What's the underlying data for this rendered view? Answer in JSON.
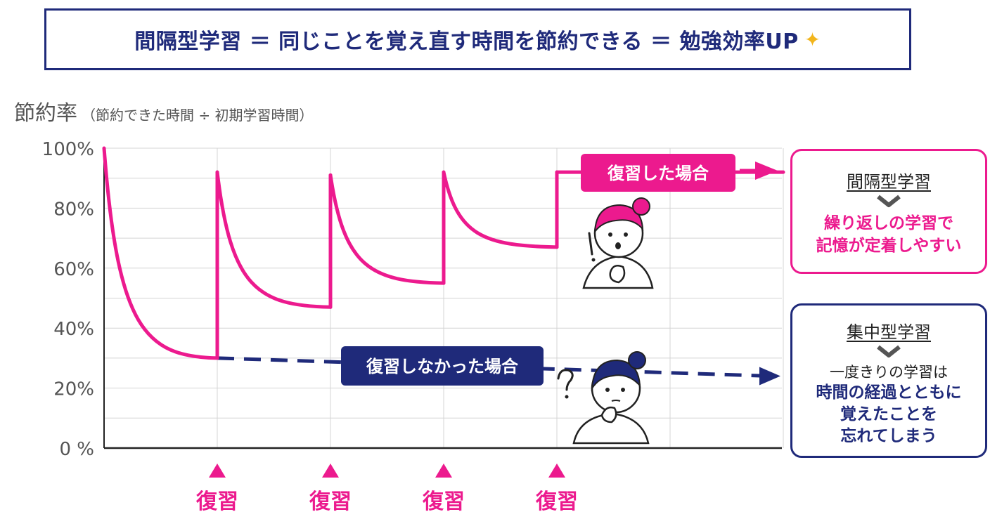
{
  "banner": {
    "text": "間隔型学習 ＝ 同じことを覚え直す時間を節約できる ＝ 勉強効率UP",
    "sparkle_icon": "sparkles-icon"
  },
  "axis": {
    "ylabel_main": "節約率",
    "ylabel_sub": "（節約できた時間 ÷ 初期学習時間）"
  },
  "chart_data": {
    "type": "line",
    "ylim": [
      0,
      100
    ],
    "yticks": [
      "100%",
      "80%",
      "60%",
      "40%",
      "20%",
      "0 %"
    ],
    "grid": true,
    "series": [
      {
        "name": "復習した場合",
        "color": "#ec1a8e",
        "style": "solid",
        "segments": [
          {
            "from": [
              0,
              100
            ],
            "to": [
              1,
              30
            ]
          },
          {
            "from": [
              1,
              92
            ],
            "to": [
              2,
              47
            ]
          },
          {
            "from": [
              2,
              91
            ],
            "to": [
              3,
              55
            ]
          },
          {
            "from": [
              3,
              92
            ],
            "to": [
              4,
              67
            ]
          },
          {
            "from": [
              4,
              92
            ],
            "to": [
              6,
              92
            ]
          }
        ]
      },
      {
        "name": "復習しなかった場合",
        "color": "#1f2a7a",
        "style": "dashed",
        "points": [
          [
            1,
            30
          ],
          [
            6,
            24
          ]
        ]
      }
    ],
    "review_markers": [
      {
        "x": 1,
        "label": "復習"
      },
      {
        "x": 2,
        "label": "復習"
      },
      {
        "x": 3,
        "label": "復習"
      },
      {
        "x": 4,
        "label": "復習"
      }
    ]
  },
  "callouts": {
    "reviewed": "復習した場合",
    "not_reviewed": "復習しなかった場合"
  },
  "boxes": {
    "spaced": {
      "title": "間隔型学習",
      "body_line1": "繰り返しの学習で",
      "body_line2": "記憶が定着しやすい"
    },
    "massed": {
      "title": "集中型学習",
      "plain": "一度きりの学習は",
      "body_line1": "時間の経過とともに",
      "body_line2": "覚えたことを",
      "body_line3": "忘れてしまう"
    }
  },
  "colors": {
    "pink": "#ec1a8e",
    "navy": "#1f2a7a",
    "grid": "#d4d4d4"
  }
}
